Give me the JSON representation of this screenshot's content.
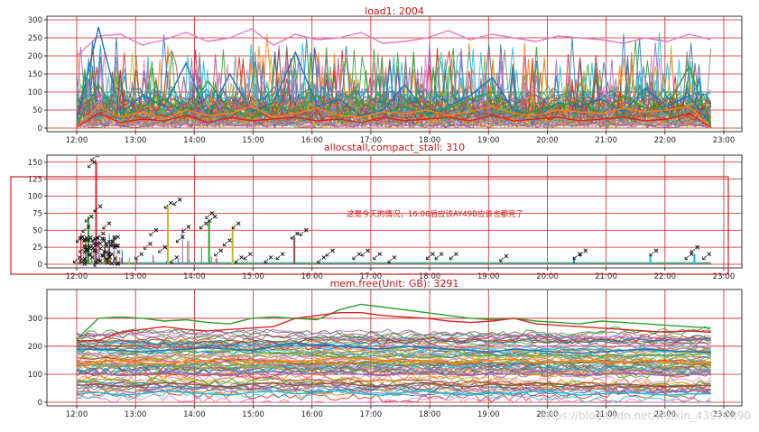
{
  "theme": {
    "grid_color": "#cc2222",
    "title_color": "#cc1111",
    "annotation_color": "#cc1111"
  },
  "annotation": {
    "text": "这是今天的情况，16:00后应该AY49B应该也都完了"
  },
  "watermark": "https://blog.csdn.net/weixin_43970890",
  "chart_data": [
    {
      "type": "line",
      "title": "load1: 2004",
      "x_ticks": [
        "12:00",
        "13:00",
        "14:00",
        "15:00",
        "16:00",
        "17:00",
        "18:00",
        "19:00",
        "20:00",
        "21:00",
        "22:00",
        "23:00"
      ],
      "y_ticks": [
        "0",
        "50",
        "100",
        "150",
        "200",
        "250",
        "300"
      ],
      "ylim": [
        0,
        300
      ],
      "grid": true,
      "series_count": 2004,
      "representative_series": [
        {
          "color": "#e377c2",
          "values": [
            200,
            255,
            260,
            230,
            245,
            265,
            240,
            250,
            275,
            230,
            260,
            245,
            250,
            265,
            235,
            240,
            250,
            270,
            245,
            260,
            250,
            240,
            255,
            250,
            245,
            235,
            250,
            240,
            260,
            245
          ]
        },
        {
          "color": "#1f77b4",
          "values": [
            20,
            280,
            40,
            90,
            60,
            180,
            30,
            150,
            45,
            70,
            210,
            60,
            80,
            35,
            50,
            120,
            40,
            60,
            90,
            140,
            50,
            30,
            70,
            60,
            80,
            45,
            110,
            60,
            90,
            10
          ]
        },
        {
          "color": "#2ca02c",
          "values": [
            10,
            120,
            25,
            60,
            80,
            40,
            130,
            50,
            30,
            60,
            45,
            90,
            20,
            70,
            40,
            60,
            35,
            55,
            80,
            100,
            30,
            50,
            60,
            75,
            40,
            90,
            55,
            60,
            170,
            5
          ]
        },
        {
          "color": "#ff7f0e",
          "values": [
            5,
            60,
            30,
            45,
            25,
            50,
            35,
            40,
            60,
            30,
            40,
            55,
            35,
            30,
            45,
            40,
            50,
            35,
            45,
            60,
            40,
            35,
            50,
            45,
            40,
            55,
            45,
            50,
            60,
            3
          ]
        },
        {
          "color": "#d62728",
          "values": [
            3,
            40,
            15,
            25,
            20,
            35,
            15,
            30,
            20,
            25,
            30,
            20,
            25,
            15,
            30,
            20,
            25,
            30,
            20,
            35,
            20,
            25,
            30,
            20,
            25,
            30,
            20,
            25,
            40,
            2
          ]
        }
      ]
    },
    {
      "type": "scatter",
      "title": "allocstall,compact_stall: 310",
      "x_ticks": [
        "12:00",
        "13:00",
        "14:00",
        "15:00",
        "16:00",
        "17:00",
        "18:00",
        "19:00",
        "20:00",
        "21:00",
        "22:00",
        "23:00"
      ],
      "y_ticks": [
        "0",
        "25",
        "50",
        "75",
        "100",
        "125",
        "150"
      ],
      "ylim": [
        0,
        155
      ],
      "grid": true,
      "series_count": 310,
      "stall_points": [
        [
          12.3,
          150
        ],
        [
          12.35,
          160
        ],
        [
          12.1,
          40
        ],
        [
          12.2,
          55
        ],
        [
          12.25,
          70
        ],
        [
          12.4,
          85
        ],
        [
          12.45,
          45
        ],
        [
          12.5,
          30
        ],
        [
          12.15,
          25
        ],
        [
          12.3,
          20
        ],
        [
          12.6,
          15
        ],
        [
          12.55,
          60
        ],
        [
          12.7,
          40
        ],
        [
          12.05,
          10
        ],
        [
          12.4,
          5
        ],
        [
          13.1,
          15
        ],
        [
          13.25,
          30
        ],
        [
          13.35,
          50
        ],
        [
          13.5,
          25
        ],
        [
          13.6,
          90
        ],
        [
          13.75,
          95
        ],
        [
          13.7,
          10
        ],
        [
          13.9,
          55
        ],
        [
          13.8,
          40
        ],
        [
          14.2,
          60
        ],
        [
          14.3,
          75
        ],
        [
          14.35,
          70
        ],
        [
          14.45,
          20
        ],
        [
          14.6,
          35
        ],
        [
          14.75,
          60
        ],
        [
          14.8,
          10
        ],
        [
          14.95,
          15
        ],
        [
          15.3,
          10
        ],
        [
          15.5,
          15
        ],
        [
          15.75,
          45
        ],
        [
          15.9,
          50
        ],
        [
          16.2,
          10
        ],
        [
          16.35,
          20
        ],
        [
          16.8,
          15
        ],
        [
          16.95,
          20
        ],
        [
          17.15,
          15
        ],
        [
          17.4,
          10
        ],
        [
          18.05,
          15
        ],
        [
          18.2,
          15
        ],
        [
          18.45,
          15
        ],
        [
          19.3,
          12
        ],
        [
          20.55,
          15
        ],
        [
          20.65,
          20
        ],
        [
          21.85,
          20
        ],
        [
          22.45,
          15
        ],
        [
          22.55,
          25
        ],
        [
          22.75,
          15
        ]
      ],
      "bar_spikes": [
        {
          "x": 12.33,
          "y": 150,
          "color": "#d62728"
        },
        {
          "x": 12.2,
          "y": 70,
          "color": "#2ca02c"
        },
        {
          "x": 13.55,
          "y": 85,
          "color": "#bcbd22"
        },
        {
          "x": 14.25,
          "y": 65,
          "color": "#2ca02c"
        },
        {
          "x": 14.65,
          "y": 55,
          "color": "#bcbd22"
        },
        {
          "x": 15.7,
          "y": 40,
          "color": "#8c564b"
        },
        {
          "x": 20.45,
          "y": 10,
          "color": "#1f77b4"
        },
        {
          "x": 21.75,
          "y": 15,
          "color": "#17becf"
        },
        {
          "x": 22.5,
          "y": 15,
          "color": "#17becf"
        }
      ]
    },
    {
      "type": "line",
      "title": "mem.free(Unit: GB): 3291",
      "x_ticks": [
        "12:00",
        "13:00",
        "14:00",
        "15:00",
        "16:00",
        "17:00",
        "18:00",
        "19:00",
        "20:00",
        "21:00",
        "22:00",
        "23:00"
      ],
      "y_ticks": [
        "0",
        "100",
        "200",
        "300"
      ],
      "ylim": [
        0,
        390
      ],
      "grid": true,
      "series_count": 3291,
      "representative_series": [
        {
          "color": "#2ca02c",
          "values": [
            225,
            300,
            305,
            300,
            290,
            295,
            285,
            280,
            300,
            305,
            300,
            295,
            330,
            350,
            340,
            330,
            320,
            310,
            300,
            295,
            300,
            290,
            285,
            280,
            290,
            285,
            280,
            275,
            270,
            265
          ]
        },
        {
          "color": "#d62728",
          "values": [
            220,
            220,
            250,
            260,
            270,
            260,
            255,
            260,
            265,
            270,
            300,
            310,
            320,
            320,
            310,
            305,
            300,
            290,
            285,
            290,
            300,
            280,
            275,
            270,
            265,
            260,
            255,
            250,
            255,
            250
          ]
        },
        {
          "color": "#1f77b4",
          "values": [
            190,
            190,
            185,
            180,
            185,
            190,
            195,
            190,
            185,
            200,
            210,
            205,
            200,
            195,
            190,
            200,
            195,
            190,
            185,
            180,
            190,
            185,
            180,
            175,
            180,
            185,
            190,
            185,
            180,
            180
          ]
        },
        {
          "color": "#ff7f0e",
          "values": [
            140,
            145,
            150,
            140,
            135,
            145,
            150,
            155,
            140,
            150,
            145,
            150,
            160,
            155,
            150,
            145,
            150,
            140,
            145,
            150,
            155,
            140,
            145,
            150,
            145,
            140,
            150,
            145,
            140,
            140
          ]
        },
        {
          "color": "#9467bd",
          "values": [
            100,
            105,
            95,
            100,
            110,
            105,
            100,
            95,
            105,
            110,
            100,
            105,
            110,
            100,
            95,
            105,
            110,
            100,
            95,
            105,
            100,
            110,
            105,
            95,
            100,
            105,
            100,
            95,
            100,
            100
          ]
        },
        {
          "color": "#8c564b",
          "values": [
            60,
            65,
            55,
            60,
            70,
            65,
            60,
            55,
            65,
            70,
            60,
            65,
            70,
            60,
            55,
            65,
            70,
            60,
            55,
            65,
            60,
            70,
            65,
            55,
            60,
            65,
            60,
            55,
            60,
            60
          ]
        },
        {
          "color": "#17becf",
          "values": [
            30,
            35,
            25,
            30,
            40,
            35,
            30,
            25,
            35,
            40,
            30,
            35,
            40,
            30,
            25,
            35,
            40,
            30,
            25,
            35,
            30,
            40,
            35,
            25,
            30,
            35,
            30,
            25,
            30,
            30
          ]
        }
      ]
    }
  ]
}
